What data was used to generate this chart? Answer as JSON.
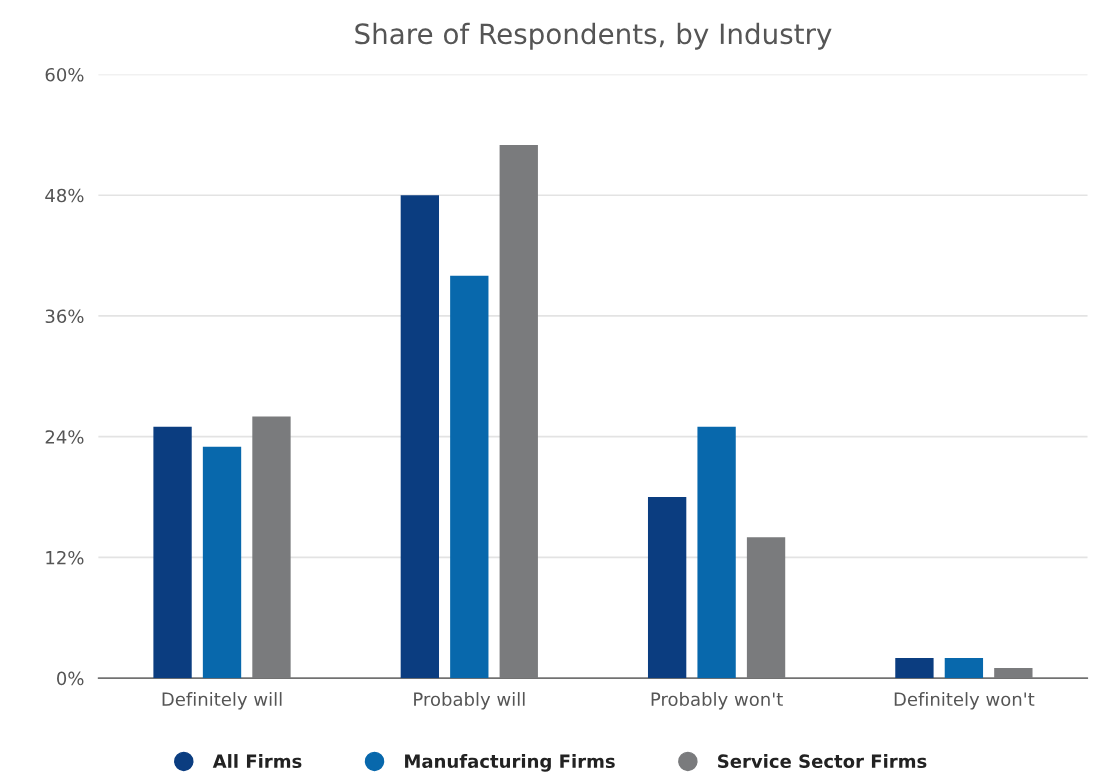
{
  "chart_data": {
    "type": "bar",
    "title": "Share of Respondents, by Industry",
    "categories": [
      "Definitely will",
      "Probably will",
      "Probably won't",
      "Definitely won't"
    ],
    "series": [
      {
        "name": "All Firms",
        "color": "#0b3d80",
        "values": [
          25,
          48,
          18,
          2
        ]
      },
      {
        "name": "Manufacturing Firms",
        "color": "#0868ac",
        "values": [
          23,
          40,
          25,
          2
        ]
      },
      {
        "name": "Service Sector Firms",
        "color": "#7a7b7d",
        "values": [
          26,
          53,
          14,
          1
        ]
      }
    ],
    "ylim": [
      0,
      60
    ],
    "yticks": [
      {
        "value": 0,
        "label": "0%"
      },
      {
        "value": 12,
        "label": "12%"
      },
      {
        "value": 24,
        "label": "24%"
      },
      {
        "value": 36,
        "label": "36%"
      },
      {
        "value": 48,
        "label": "48%"
      },
      {
        "value": 60,
        "label": "60%"
      }
    ],
    "grid": "y",
    "legend": "bottom",
    "marker": "circle"
  }
}
